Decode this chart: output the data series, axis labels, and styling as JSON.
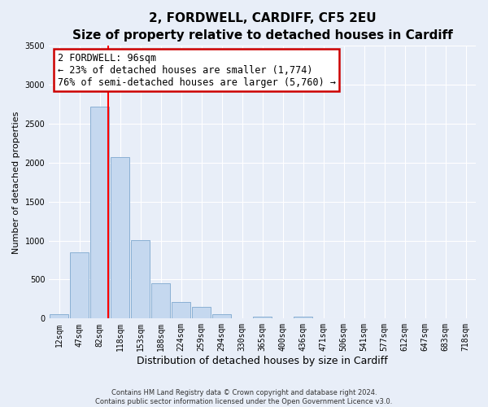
{
  "title": "2, FORDWELL, CARDIFF, CF5 2EU",
  "subtitle": "Size of property relative to detached houses in Cardiff",
  "xlabel": "Distribution of detached houses by size in Cardiff",
  "ylabel": "Number of detached properties",
  "bar_labels": [
    "12sqm",
    "47sqm",
    "82sqm",
    "118sqm",
    "153sqm",
    "188sqm",
    "224sqm",
    "259sqm",
    "294sqm",
    "330sqm",
    "365sqm",
    "400sqm",
    "436sqm",
    "471sqm",
    "506sqm",
    "541sqm",
    "577sqm",
    "612sqm",
    "647sqm",
    "683sqm",
    "718sqm"
  ],
  "bar_values": [
    55,
    850,
    2720,
    2070,
    1010,
    450,
    210,
    145,
    55,
    0,
    25,
    0,
    20,
    0,
    0,
    0,
    0,
    0,
    0,
    0,
    0
  ],
  "bar_color": "#c5d8ef",
  "bar_edge_color": "#8ab0d4",
  "vline_x": 2.42,
  "vline_color": "red",
  "annotation_title": "2 FORDWELL: 96sqm",
  "annotation_line1": "← 23% of detached houses are smaller (1,774)",
  "annotation_line2": "76% of semi-detached houses are larger (5,760) →",
  "annotation_box_facecolor": "#ffffff",
  "annotation_box_edgecolor": "#cc0000",
  "ylim": [
    0,
    3500
  ],
  "yticks": [
    0,
    500,
    1000,
    1500,
    2000,
    2500,
    3000,
    3500
  ],
  "footer_line1": "Contains HM Land Registry data © Crown copyright and database right 2024.",
  "footer_line2": "Contains public sector information licensed under the Open Government Licence v3.0.",
  "bg_color": "#e8eef8",
  "grid_color": "#ffffff",
  "title_fontsize": 11,
  "subtitle_fontsize": 9.5,
  "tick_fontsize": 7,
  "ylabel_fontsize": 8,
  "xlabel_fontsize": 9,
  "annot_fontsize": 8.5,
  "footer_fontsize": 6
}
